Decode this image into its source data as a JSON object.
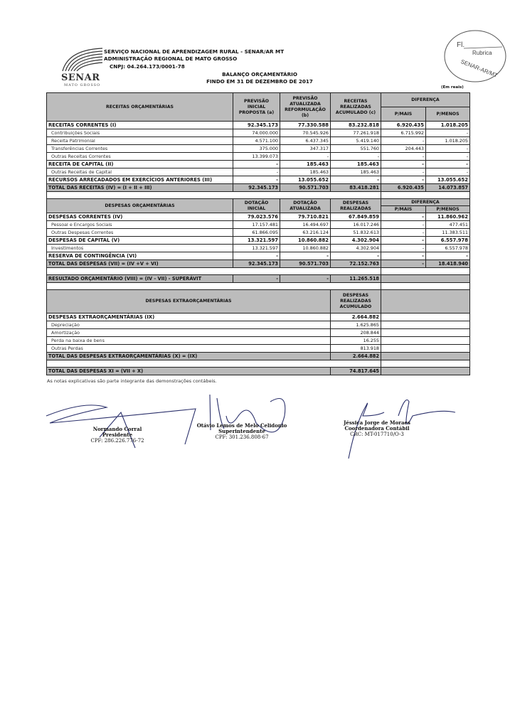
{
  "header": {
    "org": "SERVIÇO NACIONAL DE APRENDIZAGEM RURAL - SENAR/AR MT",
    "admin": "ADMINISTRAÇÃO REGIONAL DE MATO GROSSO",
    "cnpj": "CNPJ: 04.264.173/0001-78",
    "logo_name": "SENAR",
    "logo_sub": "MATO GROSSO",
    "title": "BALANÇO ORÇAMENTÁRIO",
    "subtitle": "FINDO EM 31 DE DEZEMBRO DE 2017",
    "units": "(Em reais)"
  },
  "stamp": {
    "fl": "Fl.",
    "rubrica": "Rubrica",
    "org": "SENAR-AR/MT"
  },
  "receitas": {
    "headers": [
      "RECEITAS ORÇAMENTÁRIAS",
      "PREVISÃO INICIAL PROPOSTA (a)",
      "PREVISÃO ATUALIZADA REFORMULAÇÃO (b)",
      "RECEITAS REALIZADAS ACUMULADO (c)",
      "DIFERENÇA",
      "P/MAIS",
      "P/MENOS"
    ],
    "rows": [
      {
        "kind": "bold",
        "label": "RECEITAS CORRENTES (I)",
        "values": [
          "92.345.173",
          "77.330.588",
          "83.232.818",
          "6.920.435",
          "1.018.205"
        ]
      },
      {
        "kind": "sub",
        "label": "Contribuições Sociais",
        "values": [
          "74.000.000",
          "70.545.926",
          "77.261.918",
          "6.715.992",
          "-"
        ]
      },
      {
        "kind": "sub",
        "label": "Receita Patrimonial",
        "values": [
          "4.571.100",
          "6.437.345",
          "5.419.140",
          "-",
          "1.018.205"
        ]
      },
      {
        "kind": "sub",
        "label": "Transferências Correntes",
        "values": [
          "375.000",
          "347.317",
          "551.760",
          "204.443",
          "-"
        ]
      },
      {
        "kind": "sub",
        "label": "Outras Receitas Correntes",
        "values": [
          "13.399.073",
          "-",
          "-",
          "-",
          "-"
        ]
      },
      {
        "kind": "bold",
        "label": "RECEITA DE CAPITAL (II)",
        "values": [
          "-",
          "185.463",
          "185.463",
          "-",
          "-"
        ]
      },
      {
        "kind": "sub",
        "label": "Outras Receitas de Capital",
        "values": [
          "-",
          "185.463",
          "185.463",
          "-",
          "-"
        ]
      },
      {
        "kind": "bold",
        "label": "RECURSOS ARRECADADOS EM EXERCÍCIOS ANTERIORES (III)",
        "values": [
          "-",
          "13.055.652",
          "-",
          "-",
          "13.055.652"
        ]
      },
      {
        "kind": "total",
        "label": "TOTAL DAS RECEITAS (IV) = (I + II + III)",
        "values": [
          "92.345.173",
          "90.571.703",
          "83.418.281",
          "6.920.435",
          "14.073.857"
        ]
      }
    ]
  },
  "despesas": {
    "headers": [
      "DESPESAS ORÇAMENTÁRIAS",
      "DOTAÇÃO INICIAL",
      "DOTAÇÃO ATUALIZADA",
      "DESPESAS REALIZADAS",
      "DIFERENÇA",
      "P/MAIS",
      "P/MENOS"
    ],
    "rows": [
      {
        "kind": "bold",
        "label": "DESPESAS CORRENTES (IV)",
        "values": [
          "79.023.576",
          "79.710.821",
          "67.849.859",
          "-",
          "11.860.962"
        ]
      },
      {
        "kind": "sub",
        "label": "Pessoal e Encargos Sociais",
        "values": [
          "17.157.481",
          "16.494.697",
          "16.017.246",
          "-",
          "477.451"
        ]
      },
      {
        "kind": "sub",
        "label": "Outras Despesas Correntes",
        "values": [
          "61.866.095",
          "63.216.124",
          "51.832.613",
          "-",
          "11.383.511"
        ]
      },
      {
        "kind": "bold",
        "label": "DESPESAS DE CAPITAL (V)",
        "values": [
          "13.321.597",
          "10.860.882",
          "4.302.904",
          "-",
          "6.557.978"
        ]
      },
      {
        "kind": "sub",
        "label": "Investimentos",
        "values": [
          "13.321.597",
          "10.860.882",
          "4.302.904",
          "-",
          "6.557.978"
        ]
      },
      {
        "kind": "bold",
        "label": "RESERVA DE CONTINGÊNCIA (VI)",
        "values": [
          "-",
          "-",
          "-",
          "-",
          "-"
        ]
      },
      {
        "kind": "total",
        "label": "TOTAL DAS DESPESAS (VII) = (IV +V + VI)",
        "values": [
          "92.345.173",
          "90.571.703",
          "72.152.763",
          "-",
          "18.418.940"
        ]
      }
    ],
    "resultado": {
      "label": "RESULTADO ORÇAMENTÁRIO (VIII) = (IV - VII)  - SUPERÁVIT",
      "values": [
        "-",
        "-",
        "11.265.518"
      ]
    }
  },
  "extra": {
    "headers": [
      "DESPESAS EXTRAORÇAMENTÁRIAS",
      "DESPESAS REALIZADAS ACUMULADO"
    ],
    "rows": [
      {
        "kind": "bold",
        "label": "DESPESAS EXTRAORÇAMENTÁRIAS (IX)",
        "value": "2.664.882"
      },
      {
        "kind": "sub",
        "label": "Depreciação",
        "value": "1.625.865"
      },
      {
        "kind": "sub",
        "label": "Amortização",
        "value": "208.844"
      },
      {
        "kind": "sub",
        "label": "Perda na baixa de bens",
        "value": "16.255"
      },
      {
        "kind": "sub",
        "label": "Outras Perdas",
        "value": "813.918"
      },
      {
        "kind": "total",
        "label": "TOTAL DAS DESPESAS EXTRAORÇAMENTÁRIAS (X) = (IX)",
        "value": "2.664.882"
      }
    ],
    "grand_total": {
      "label": "TOTAL DAS DESPESAS XI = (VII + X)",
      "value": "74.817.645"
    }
  },
  "note": "As notas explicativas são parte integrante das demonstrações contábeis.",
  "signatures": [
    {
      "name": "Normando Corral",
      "role": "Presidente",
      "id": "CPF: 286.226.776-72"
    },
    {
      "name": "Otávio Lemos de Melo Celidonio",
      "role": "Superintendente",
      "id": "CPF: 301.236.808-67"
    },
    {
      "name": "Jéssica Jorge de Moraes",
      "role": "Coordenadora Contábil",
      "id": "CRC: MT-017710/O-3"
    }
  ]
}
